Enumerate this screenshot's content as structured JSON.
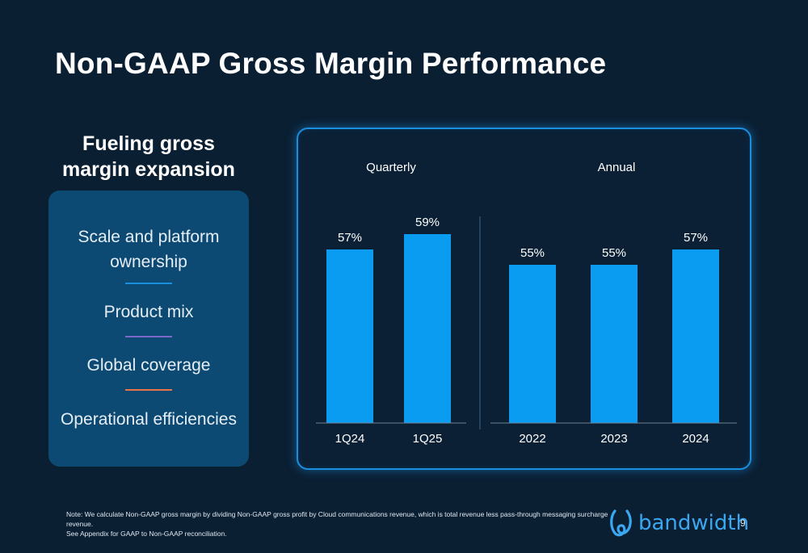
{
  "slide": {
    "title": "Non-GAAP Gross Margin Performance",
    "page_number": "9"
  },
  "left": {
    "heading_line1": "Fueling gross",
    "heading_line2": "margin expansion",
    "drivers": [
      {
        "line1": "Scale and platform",
        "line2": "ownership",
        "divider_color": "#1a8fe0"
      },
      {
        "line1": "Product mix",
        "line2": "",
        "divider_color": "#7b68c8"
      },
      {
        "line1": "Global coverage",
        "line2": "",
        "divider_color": "#e8744a"
      },
      {
        "line1": "Operational efficiencies",
        "line2": "",
        "divider_color": ""
      }
    ]
  },
  "chart_data": [
    {
      "type": "bar",
      "title": "Quarterly",
      "categories": [
        "1Q24",
        "1Q25"
      ],
      "values": [
        57,
        59
      ],
      "value_labels": [
        "57%",
        "59%"
      ],
      "unit": "%",
      "bar_color": "#0a9cf0"
    },
    {
      "type": "bar",
      "title": "Annual",
      "categories": [
        "2022",
        "2023",
        "2024"
      ],
      "values": [
        55,
        55,
        57
      ],
      "value_labels": [
        "55%",
        "55%",
        "57%"
      ],
      "unit": "%",
      "bar_color": "#0a9cf0"
    }
  ],
  "footnote": {
    "line1": "Note: We calculate Non-GAAP gross margin by dividing Non-GAAP gross profit by Cloud communications revenue, which is total revenue less pass-through messaging surcharge",
    "line2": "revenue.",
    "line3": "See Appendix for GAAP to Non-GAAP reconciliation."
  },
  "logo": {
    "text": "bandwidth",
    "icon": "bandwidth-logo-icon",
    "color": "#3aa7f0"
  }
}
